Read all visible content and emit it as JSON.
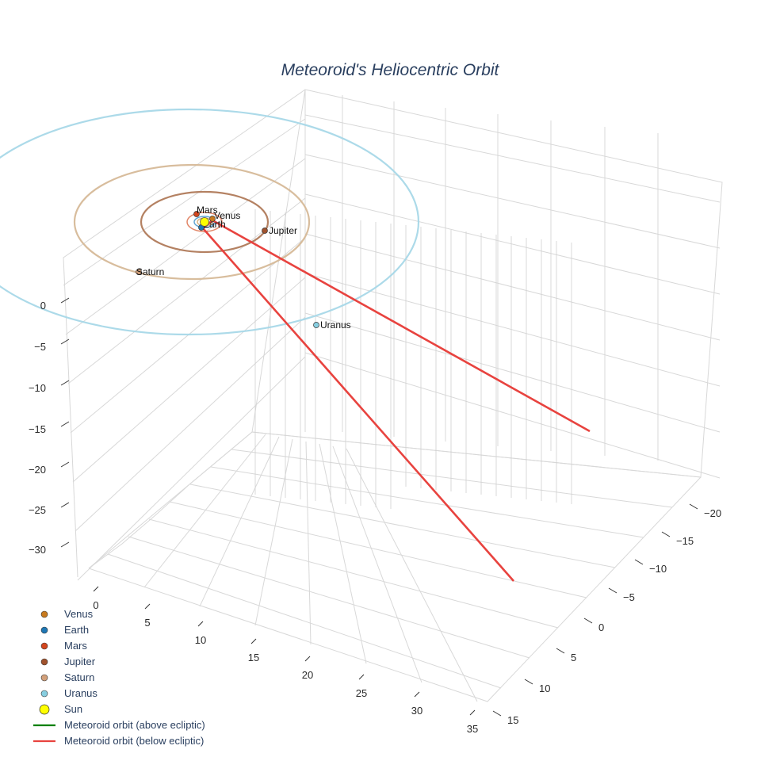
{
  "chart_data": {
    "type": "scatter3d",
    "title": "Meteoroid's Heliocentric Orbit",
    "axes": {
      "x": {
        "ticks": [
          0,
          5,
          10,
          15,
          20,
          25,
          30,
          35
        ]
      },
      "y": {
        "ticks": [
          -20,
          -15,
          -10,
          -5,
          0,
          5,
          10,
          15
        ]
      },
      "z": {
        "ticks": [
          0,
          -5,
          -10,
          -15,
          -20,
          -25,
          -30
        ]
      }
    },
    "sun": {
      "name": "Sun",
      "color": "#ffff00"
    },
    "planets": [
      {
        "name": "Venus",
        "color": "#c87a1e",
        "orbit_color": "#d8b07a"
      },
      {
        "name": "Earth",
        "color": "#1f77b4",
        "orbit_color": "#5aa0d0"
      },
      {
        "name": "Mars",
        "color": "#d2461e",
        "orbit_color": "#e08060"
      },
      {
        "name": "Jupiter",
        "color": "#a0522d",
        "orbit_color": "#b07a5a"
      },
      {
        "name": "Saturn",
        "color": "#d2a07a",
        "orbit_color": "#d6b998"
      },
      {
        "name": "Uranus",
        "color": "#87cee0",
        "orbit_color": "#a8d8e8"
      }
    ],
    "series": [
      {
        "name": "Meteoroid orbit (above ecliptic)",
        "color": "#008000"
      },
      {
        "name": "Meteoroid orbit (below ecliptic)",
        "color": "#e8433f"
      }
    ],
    "legend_position": "bottom-left",
    "grid": true
  }
}
